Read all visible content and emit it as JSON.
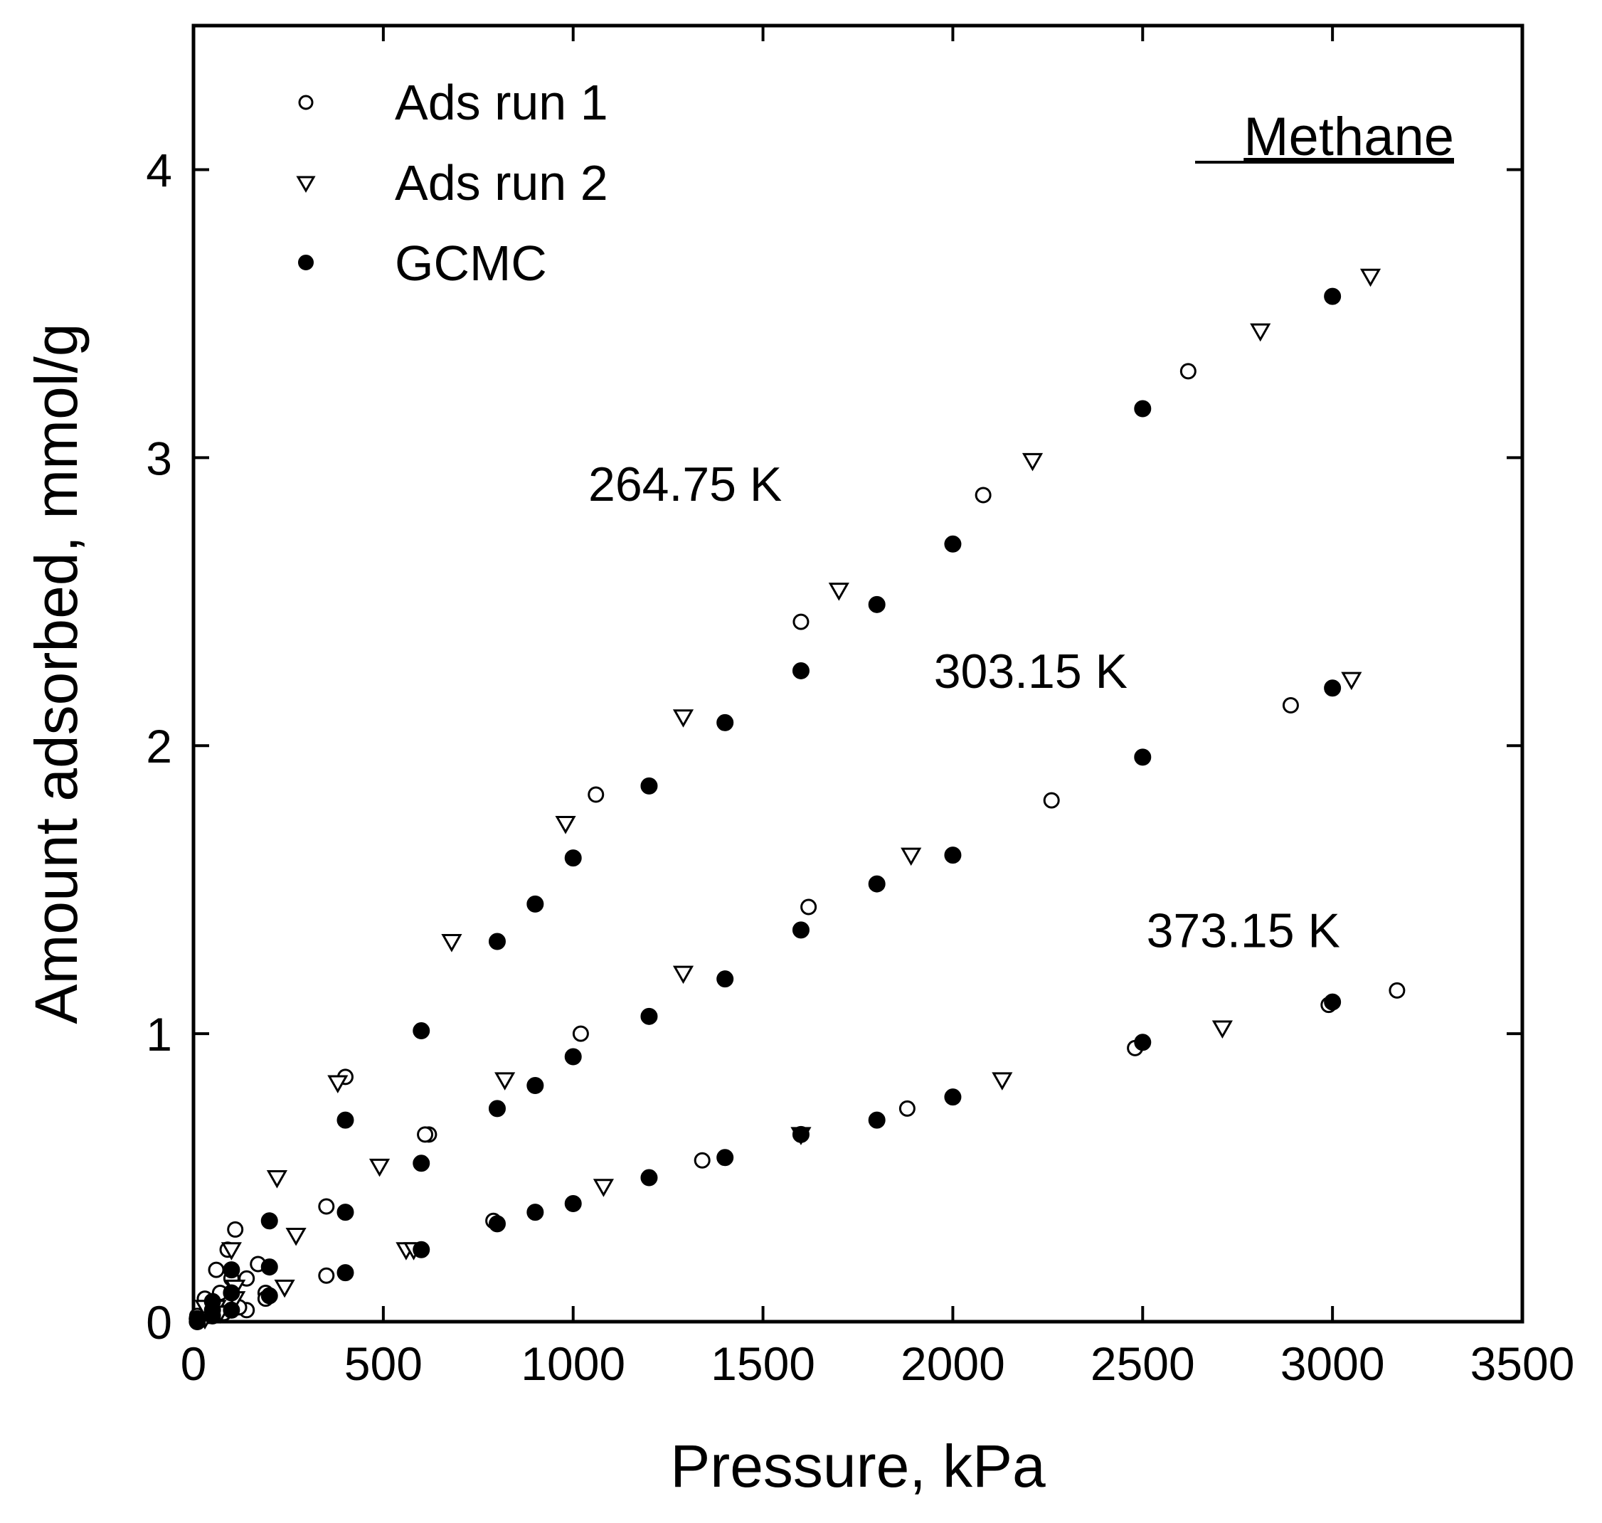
{
  "chart_data": {
    "type": "scatter",
    "title": "Methane",
    "xlabel": "Pressure, kPa",
    "ylabel": "Amount adsorbed, mmol/g",
    "xlim": [
      0,
      3500
    ],
    "ylim": [
      0,
      4.5
    ],
    "xticks": [
      0,
      500,
      1000,
      1500,
      2000,
      2500,
      3000,
      3500
    ],
    "yticks": [
      0,
      1,
      2,
      3,
      4
    ],
    "grid": false,
    "legend_position": "top-left",
    "annotations": [
      {
        "text": "264.75 K",
        "x": 1550,
        "y": 2.85
      },
      {
        "text": "303.15 K",
        "x": 2460,
        "y": 2.2
      },
      {
        "text": "373.15 K",
        "x": 3020,
        "y": 1.3
      }
    ],
    "series": [
      {
        "name": "Ads run 1",
        "marker": "open-circle",
        "x": [
          10,
          30,
          60,
          90,
          110,
          140,
          170,
          350,
          400,
          620,
          1060,
          1600,
          2080,
          2620,
          15,
          40,
          70,
          100,
          140,
          190,
          350,
          610,
          1020,
          1620,
          2260,
          2890,
          10,
          40,
          80,
          120,
          190,
          790,
          1340,
          1880,
          2480,
          2990,
          3170
        ],
        "y": [
          0.02,
          0.08,
          0.18,
          0.25,
          0.32,
          0.15,
          0.2,
          0.4,
          0.85,
          0.65,
          1.83,
          2.43,
          2.87,
          3.3,
          0.01,
          0.05,
          0.1,
          0.15,
          0.04,
          0.1,
          0.16,
          0.65,
          1.0,
          1.44,
          1.81,
          2.14,
          0.0,
          0.02,
          0.03,
          0.05,
          0.08,
          0.35,
          0.56,
          0.74,
          0.95,
          1.1,
          1.15
        ]
      },
      {
        "name": "Ads run 2",
        "marker": "open-triangle-down",
        "x": [
          30,
          100,
          220,
          270,
          380,
          490,
          680,
          980,
          1290,
          1700,
          2210,
          2810,
          3100,
          20,
          60,
          110,
          240,
          560,
          820,
          1290,
          1890,
          3050,
          30,
          70,
          110,
          580,
          1080,
          1600,
          2130,
          2710
        ],
        "y": [
          0.05,
          0.25,
          0.5,
          0.3,
          0.83,
          0.54,
          1.32,
          1.73,
          2.1,
          2.54,
          2.99,
          3.44,
          3.63,
          0.01,
          0.05,
          0.12,
          0.12,
          0.25,
          0.84,
          1.21,
          1.62,
          2.23,
          0.01,
          0.03,
          0.08,
          0.25,
          0.47,
          0.65,
          0.84,
          1.02
        ]
      },
      {
        "name": "GCMC",
        "marker": "filled-circle",
        "x": [
          10,
          50,
          100,
          200,
          400,
          600,
          800,
          900,
          1000,
          1200,
          1400,
          1600,
          1800,
          2000,
          2500,
          3000,
          10,
          50,
          100,
          200,
          400,
          600,
          800,
          900,
          1000,
          1200,
          1400,
          1600,
          1800,
          2000,
          2500,
          3000,
          10,
          50,
          100,
          200,
          400,
          600,
          800,
          900,
          1000,
          1200,
          1400,
          1600,
          1800,
          2000,
          2500,
          3000
        ],
        "y": [
          0.01,
          0.07,
          0.18,
          0.35,
          0.7,
          1.01,
          1.32,
          1.45,
          1.61,
          1.86,
          2.08,
          2.26,
          2.49,
          2.7,
          3.17,
          3.56,
          0.01,
          0.04,
          0.1,
          0.19,
          0.38,
          0.55,
          0.74,
          0.82,
          0.92,
          1.06,
          1.19,
          1.36,
          1.52,
          1.62,
          1.96,
          2.2,
          0.0,
          0.02,
          0.04,
          0.09,
          0.17,
          0.25,
          0.34,
          0.38,
          0.41,
          0.5,
          0.57,
          0.65,
          0.7,
          0.78,
          0.97,
          1.11
        ]
      }
    ]
  }
}
